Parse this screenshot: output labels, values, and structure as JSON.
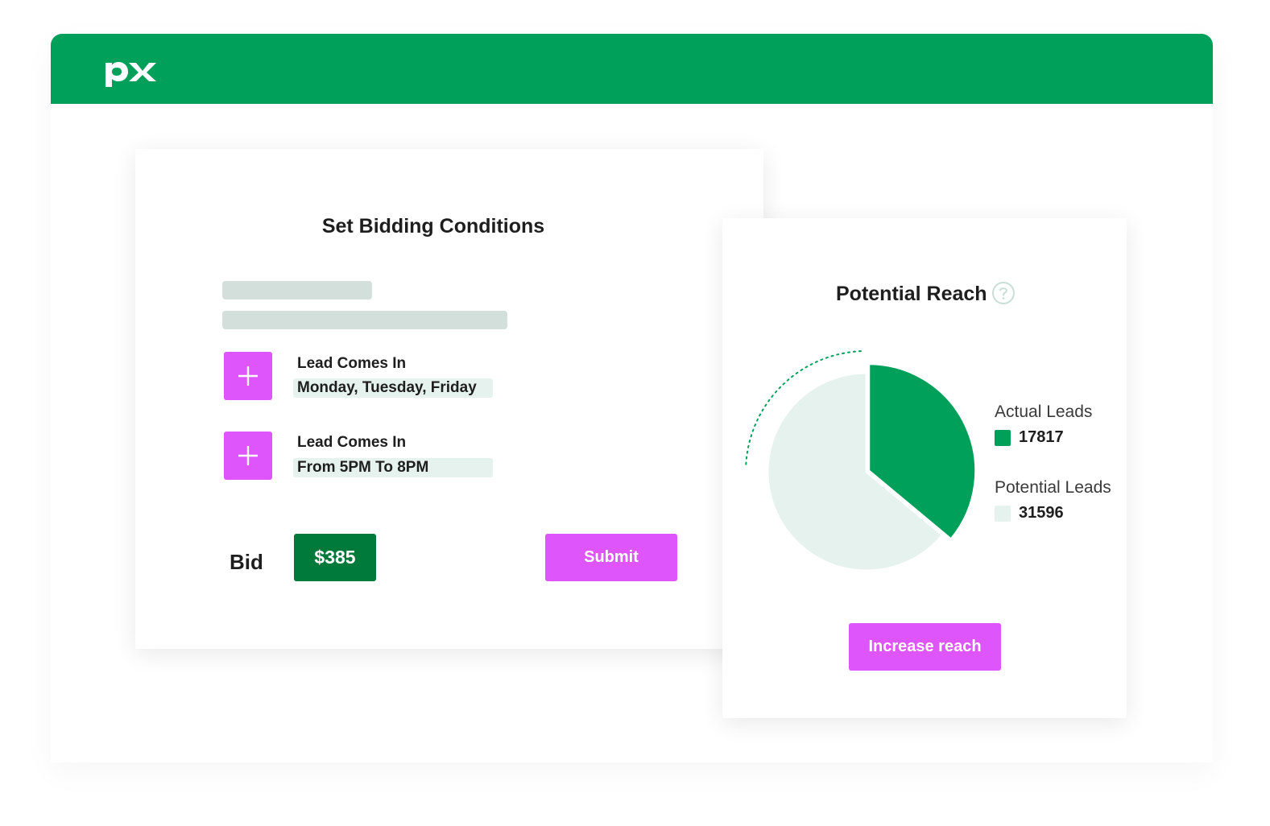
{
  "colors": {
    "brand_green": "#01a05a",
    "bid_green": "#007a3a",
    "accent_pink": "#de55fb",
    "potential_light": "#e6f2ee"
  },
  "header": {
    "logo": "px-logo"
  },
  "bidding": {
    "title": "Set Bidding Conditions",
    "conditions": [
      {
        "label": "Lead Comes In",
        "value": "Monday, Tuesday, Friday",
        "icon": "plus-icon"
      },
      {
        "label": "Lead Comes In",
        "value": "From 5PM To 8PM",
        "icon": "plus-icon"
      }
    ],
    "bid_label": "Bid",
    "bid_value": "$385",
    "submit_label": "Submit"
  },
  "reach": {
    "title": "Potential Reach",
    "help_icon": "question-circle-icon",
    "increase_label": "Increase reach"
  },
  "chart_data": {
    "type": "pie",
    "series": [
      {
        "name": "Actual Leads",
        "value": 17817,
        "display": "17817",
        "color": "#01a05a"
      },
      {
        "name": "Potential Leads",
        "value": 31596,
        "display": "31596",
        "color": "#e6f2ee"
      }
    ]
  }
}
